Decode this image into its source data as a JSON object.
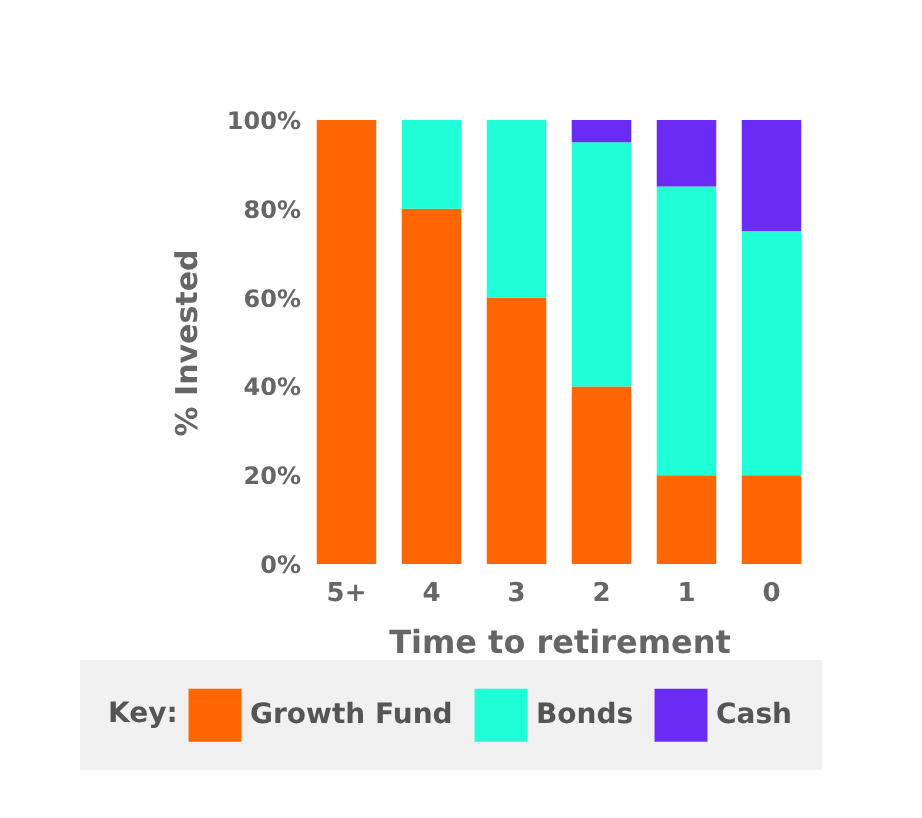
{
  "chart_data": {
    "type": "bar",
    "stacked": true,
    "xlabel": "Time to retirement",
    "ylabel": "% Invested",
    "legend_title": "Key:",
    "legend": "bottom",
    "grid": false,
    "categories": [
      "5+",
      "4",
      "3",
      "2",
      "1",
      "0"
    ],
    "ylim": [
      0,
      100
    ],
    "yticks": [
      {
        "value": 0,
        "label": "0%"
      },
      {
        "value": 20,
        "label": "20%"
      },
      {
        "value": 40,
        "label": "40%"
      },
      {
        "value": 60,
        "label": "60%"
      },
      {
        "value": 80,
        "label": "80%"
      },
      {
        "value": 100,
        "label": "100%"
      }
    ],
    "series": [
      {
        "name": "Growth Fund",
        "color": "#ff6600",
        "values": [
          100,
          80,
          60,
          40,
          20,
          20
        ]
      },
      {
        "name": "Bonds",
        "color": "#1effd8",
        "values": [
          0,
          20,
          40,
          55,
          65,
          55
        ]
      },
      {
        "name": "Cash",
        "color": "#6a2cf5",
        "values": [
          0,
          0,
          0,
          5,
          15,
          25
        ]
      }
    ]
  }
}
